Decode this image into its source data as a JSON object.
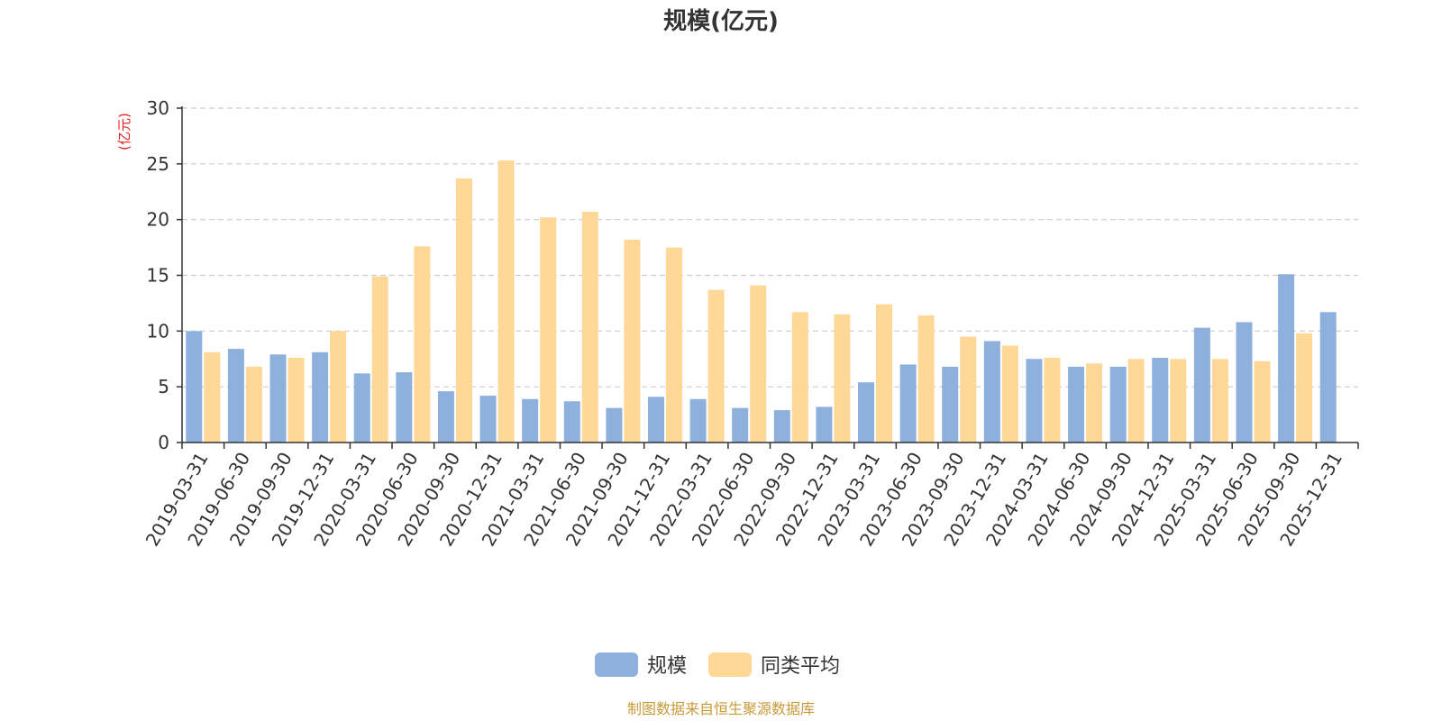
{
  "chart_data": {
    "type": "bar",
    "title": "规模(亿元)",
    "ylabel": "(亿元)",
    "ylim": [
      0,
      30
    ],
    "yticks": [
      0,
      5,
      10,
      15,
      20,
      25,
      30
    ],
    "grid": true,
    "legend_position": "bottom-center",
    "categories": [
      "2019-03-31",
      "2019-06-30",
      "2019-09-30",
      "2019-12-31",
      "2020-03-31",
      "2020-06-30",
      "2020-09-30",
      "2020-12-31",
      "2021-03-31",
      "2021-06-30",
      "2021-09-30",
      "2021-12-31",
      "2022-03-31",
      "2022-06-30",
      "2022-09-30",
      "2022-12-31",
      "2023-03-31",
      "2023-06-30",
      "2023-09-30",
      "2023-12-31",
      "2024-03-31",
      "2024-06-30",
      "2024-09-30",
      "2024-12-31",
      "2025-03-31",
      "2025-06-30",
      "2025-09-30",
      "2025-12-31"
    ],
    "series": [
      {
        "name": "规模",
        "color": "#8eb0dc",
        "values": [
          10.0,
          8.4,
          7.9,
          8.1,
          6.2,
          6.3,
          4.6,
          4.2,
          3.9,
          3.7,
          3.1,
          4.1,
          3.9,
          3.1,
          2.9,
          3.2,
          5.4,
          7.0,
          6.8,
          9.1,
          7.5,
          6.8,
          6.8,
          7.6,
          10.3,
          10.8,
          15.1,
          11.7
        ]
      },
      {
        "name": "同类平均",
        "color": "#ffd898",
        "values": [
          8.1,
          6.8,
          7.6,
          10.0,
          14.9,
          17.6,
          23.7,
          25.3,
          20.2,
          20.7,
          18.2,
          17.5,
          13.7,
          14.1,
          11.7,
          11.5,
          12.4,
          11.4,
          9.5,
          8.7,
          7.6,
          7.1,
          7.5,
          7.5,
          7.5,
          7.3,
          9.8,
          null
        ]
      }
    ],
    "source_note": "制图数据来自恒生聚源数据库",
    "source_color": "#c89a3a",
    "unit_color": "#e02020"
  }
}
